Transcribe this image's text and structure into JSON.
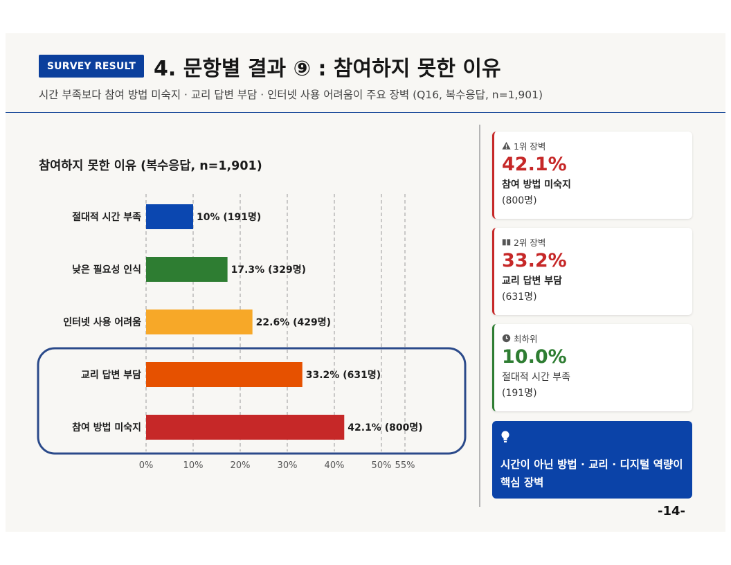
{
  "header": {
    "badge": "SURVEY RESULT",
    "title": "4. 문항별 결과 ⑨ : 참여하지 못한 이유",
    "subtitle": "시간 부족보다 참여 방법 미숙지 · 교리 답변 부담 · 인터넷 사용 어려움이 주요 장벽 (Q16, 복수응답, n=1,901)"
  },
  "chart_data": {
    "type": "bar",
    "orientation": "horizontal",
    "title": "참여하지 못한 이유 (복수응답, n=1,901)",
    "categories": [
      "절대적 시간 부족",
      "낮은 필요성 인식",
      "인터넷 사용 어려움",
      "교리 답변 부담",
      "참여 방법 미숙지"
    ],
    "values": [
      10,
      17.3,
      22.6,
      33.2,
      42.1
    ],
    "value_labels": [
      "10% (191명)",
      "17.3% (329명)",
      "22.6% (429명)",
      "33.2% (631명)",
      "42.1% (800명)"
    ],
    "colors": [
      "#0b47b0",
      "#2e7d32",
      "#f7a828",
      "#e65100",
      "#c62828"
    ],
    "xlim": [
      0,
      55
    ],
    "ticks": [
      0,
      10,
      20,
      30,
      40,
      50,
      55
    ],
    "tick_labels": [
      "0%",
      "10%",
      "20%",
      "30%",
      "40%",
      "50%",
      "55%"
    ],
    "grid": true,
    "highlight_categories": [
      "교리 답변 부담",
      "참여 방법 미숙지"
    ],
    "highlight_color": "#2b4a8a"
  },
  "cards": [
    {
      "icon": "warning-icon",
      "label": "1위 장벽",
      "pct": "42.1%",
      "name": "참여 방법 미숙지",
      "count": "(800명)",
      "accent": "#c62828"
    },
    {
      "icon": "book-icon",
      "label": "2위 장벽",
      "pct": "33.2%",
      "name": "교리 답변 부담",
      "count": "(631명)",
      "accent": "#c62828"
    },
    {
      "icon": "clock-icon",
      "label": "최하위",
      "pct": "10.0%",
      "name": "절대적 시간 부족",
      "count": "(191명)",
      "accent": "#2e7d32"
    }
  ],
  "insight": {
    "icon": "lightbulb-icon",
    "line1": "시간이 아닌 방법 · 교리 · 디지털 역량이",
    "line2": "핵심 장벽"
  },
  "page_number": "-14-"
}
